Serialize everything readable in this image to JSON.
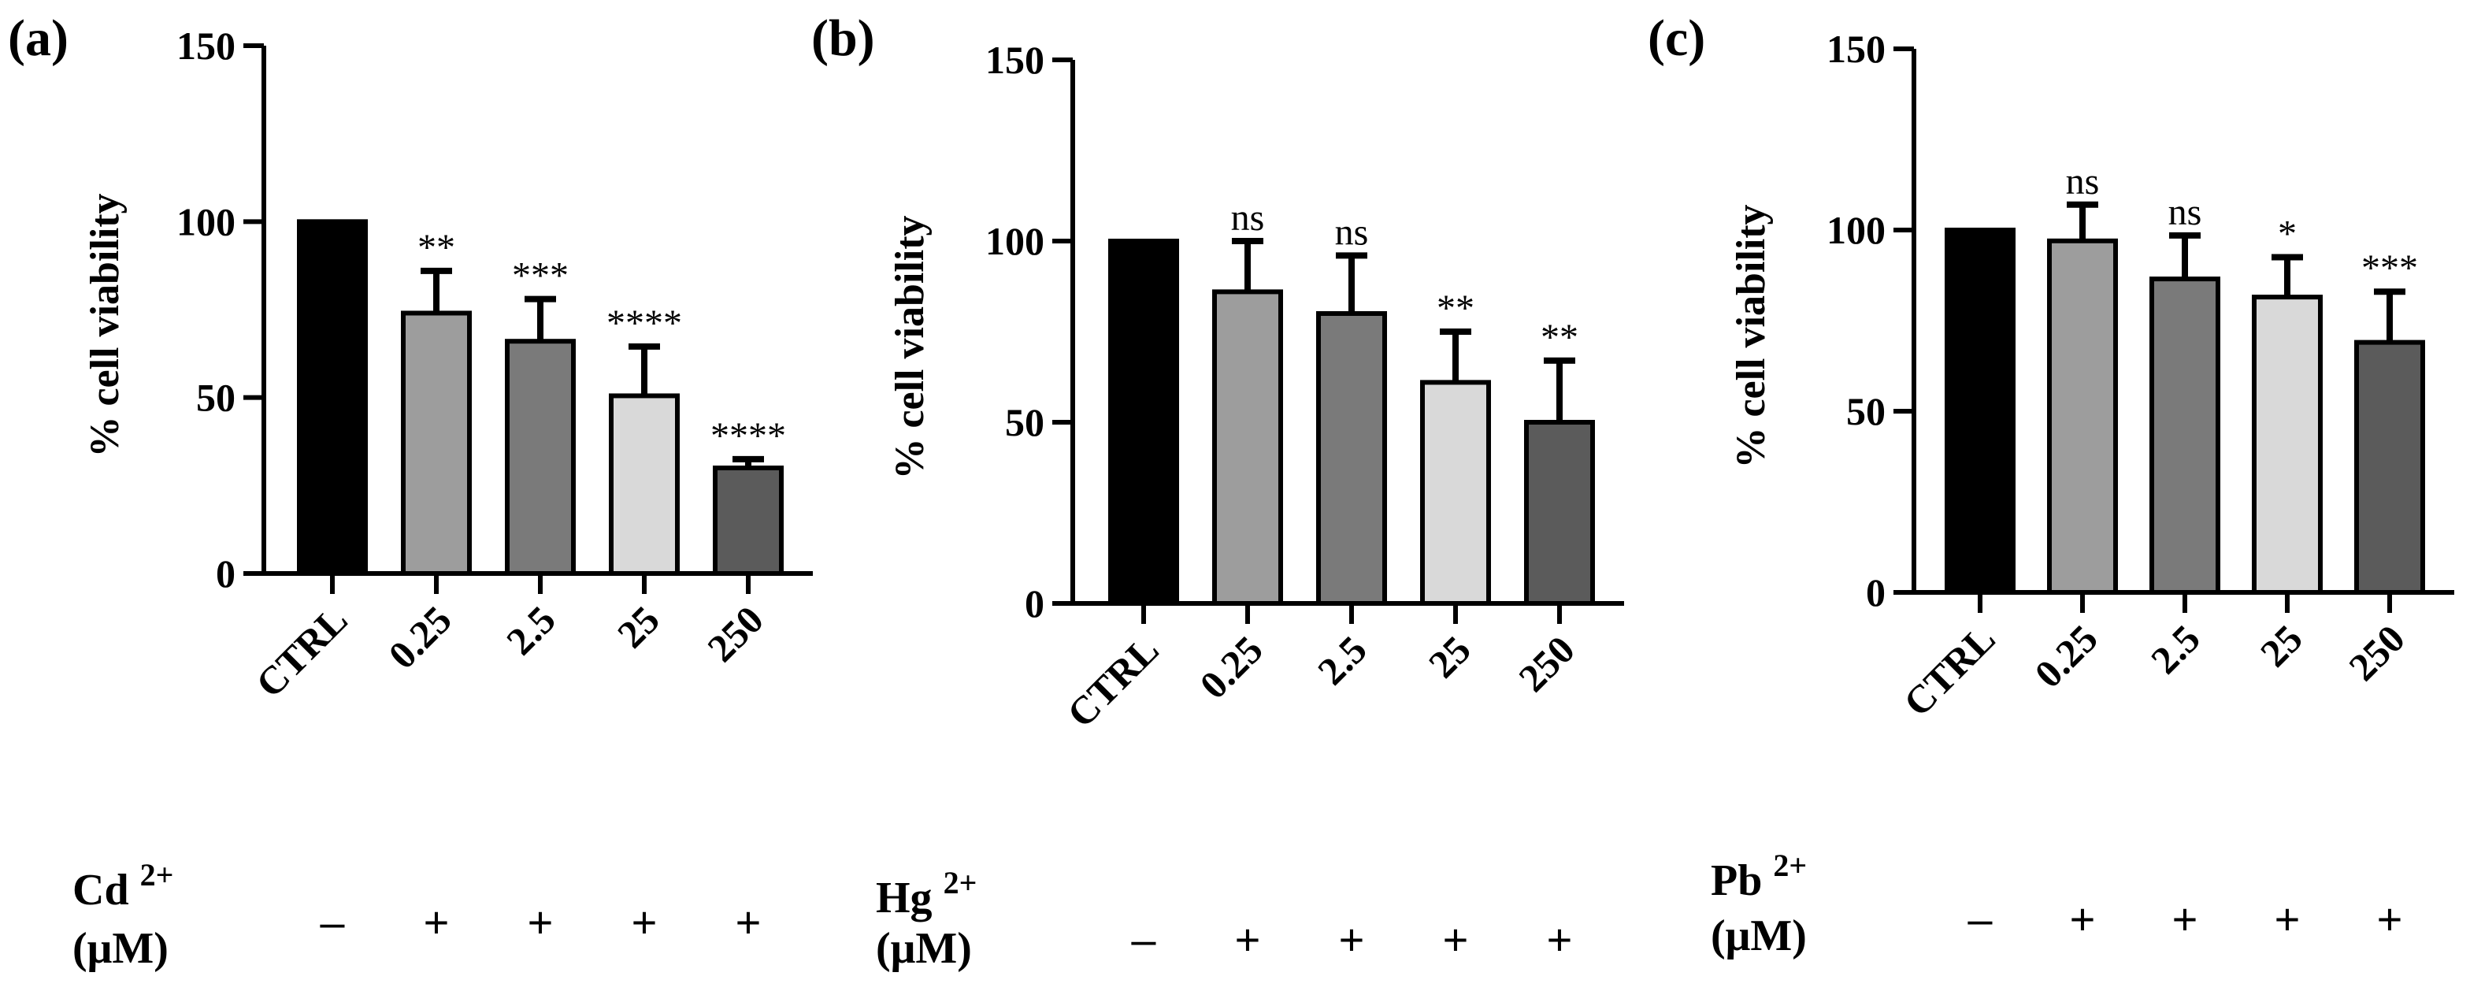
{
  "chart_data": [
    {
      "type": "bar",
      "panel": "(a)",
      "ylabel": "% cell viability",
      "ylim": [
        0,
        150
      ],
      "yticks": [
        "0",
        "50",
        "100",
        "150"
      ],
      "categories": [
        "CTRL",
        "0.25",
        "2.5",
        "25",
        "250"
      ],
      "values": [
        100,
        74,
        66,
        50.5,
        30
      ],
      "errors": [
        0,
        12,
        12,
        14,
        2.5
      ],
      "significance": [
        "",
        "**",
        "***",
        "****",
        "****"
      ],
      "colors": [
        "#000000",
        "#9d9d9d",
        "#7a7a7a",
        "#d9d9d9",
        "#5b5b5b"
      ],
      "ion": {
        "symbol": "Cd",
        "charge": "2+",
        "unit": "(μM)"
      },
      "treatment": [
        "–",
        "+",
        "+",
        "+",
        "+"
      ]
    },
    {
      "type": "bar",
      "panel": "(b)",
      "ylabel": "% cell viability",
      "ylim": [
        0,
        150
      ],
      "yticks": [
        "0",
        "50",
        "100",
        "150"
      ],
      "categories": [
        "CTRL",
        "0.25",
        "2.5",
        "25",
        "250"
      ],
      "values": [
        100,
        86,
        80,
        61,
        50
      ],
      "errors": [
        0,
        14,
        16,
        14,
        17
      ],
      "significance": [
        "",
        "ns",
        "ns",
        "**",
        "**"
      ],
      "colors": [
        "#000000",
        "#9d9d9d",
        "#7a7a7a",
        "#d9d9d9",
        "#5b5b5b"
      ],
      "ion": {
        "symbol": "Hg",
        "charge": "2+",
        "unit": "(μM)"
      },
      "treatment": [
        "–",
        "+",
        "+",
        "+",
        "+"
      ]
    },
    {
      "type": "bar",
      "panel": "(c)",
      "ylabel": "% cell viability",
      "ylim": [
        0,
        150
      ],
      "yticks": [
        "0",
        "50",
        "100",
        "150"
      ],
      "categories": [
        "CTRL",
        "0.25",
        "2.5",
        "25",
        "250"
      ],
      "values": [
        100,
        97,
        86.5,
        81.5,
        69
      ],
      "errors": [
        0,
        10,
        12,
        11,
        14
      ],
      "significance": [
        "",
        "ns",
        "ns",
        "*",
        "***"
      ],
      "colors": [
        "#000000",
        "#9d9d9d",
        "#7a7a7a",
        "#d9d9d9",
        "#5b5b5b"
      ],
      "ion": {
        "symbol": "Pb",
        "charge": "2+",
        "unit": "(μM)"
      },
      "treatment": [
        "–",
        "+",
        "+",
        "+",
        "+"
      ]
    }
  ]
}
